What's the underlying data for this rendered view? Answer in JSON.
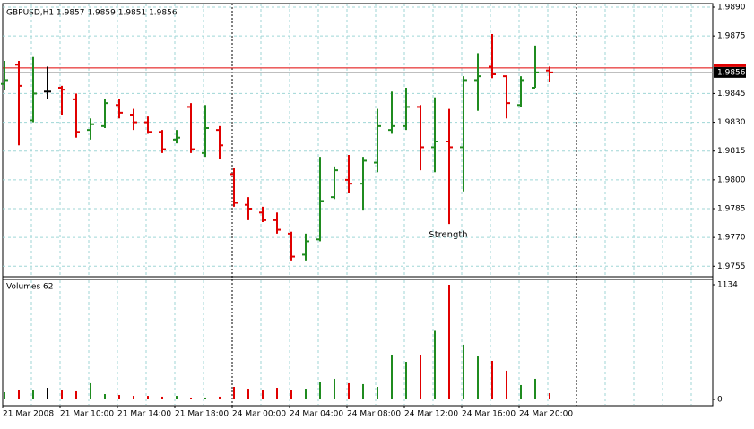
{
  "chart_data": {
    "type": "ohlc",
    "title": "GBPUSD,H1  1.9857 1.9859 1.9851 1.9856",
    "annotation": "Strength",
    "categories": [
      "21 Mar 2008",
      null,
      null,
      null,
      "21 Mar 10:00",
      null,
      null,
      null,
      "21 Mar 14:00",
      null,
      null,
      null,
      "21 Mar 18:00",
      null,
      null,
      null,
      "24 Mar 00:00",
      null,
      null,
      null,
      "24 Mar 04:00",
      null,
      null,
      null,
      "24 Mar 08:00",
      null,
      null,
      null,
      "24 Mar 12:00",
      null,
      null,
      null,
      "24 Mar 16:00",
      null,
      null,
      null,
      "24 Mar 20:00",
      null,
      null
    ],
    "open": [
      1.985,
      1.986,
      1.9831,
      1.9846,
      1.9848,
      1.9842,
      1.9826,
      1.9828,
      1.9839,
      1.9834,
      1.983,
      1.9825,
      1.9821,
      1.9838,
      1.9814,
      1.9826,
      1.9803,
      1.9787,
      1.9783,
      1.9779,
      1.9772,
      1.9761,
      1.9769,
      1.9791,
      1.98,
      1.9798,
      1.9809,
      1.9826,
      1.9828,
      1.9838,
      1.9817,
      1.982,
      1.9817,
      1.9852,
      1.9859,
      1.9854,
      1.9839,
      1.9848,
      1.9857
    ],
    "high": [
      1.9862,
      1.9862,
      1.9864,
      1.9859,
      1.9849,
      1.9845,
      1.9832,
      1.9842,
      1.9842,
      1.9837,
      1.9833,
      1.9826,
      1.9826,
      1.984,
      1.9839,
      1.9828,
      1.9806,
      1.9791,
      1.9786,
      1.9783,
      1.9773,
      1.9772,
      1.9812,
      1.9807,
      1.9813,
      1.9812,
      1.9837,
      1.9846,
      1.9848,
      1.9839,
      1.9843,
      1.9837,
      1.9854,
      1.9866,
      1.9876,
      1.9854,
      1.9854,
      1.987,
      1.9859
    ],
    "low": [
      1.9847,
      1.9818,
      1.983,
      1.9842,
      1.9834,
      1.9822,
      1.9821,
      1.9827,
      1.9832,
      1.9826,
      1.9824,
      1.9814,
      1.9819,
      1.9814,
      1.9812,
      1.9811,
      1.9786,
      1.9779,
      1.9778,
      1.9772,
      1.9758,
      1.9758,
      1.9768,
      1.979,
      1.9793,
      1.9784,
      1.9804,
      1.9824,
      1.9826,
      1.9805,
      1.9804,
      1.9777,
      1.9794,
      1.9836,
      1.9853,
      1.9832,
      1.9838,
      1.9848,
      1.9851
    ],
    "close": [
      1.9852,
      1.9849,
      1.9845,
      1.9846,
      1.9847,
      1.9825,
      1.9829,
      1.984,
      1.9835,
      1.983,
      1.9825,
      1.9816,
      1.9822,
      1.9816,
      1.9827,
      1.9818,
      1.9788,
      1.9785,
      1.9779,
      1.9774,
      1.976,
      1.9768,
      1.9789,
      1.9805,
      1.9798,
      1.981,
      1.9828,
      1.9828,
      1.9838,
      1.9817,
      1.982,
      1.9817,
      1.9852,
      1.9854,
      1.9855,
      1.984,
      1.9852,
      1.9856,
      1.9856
    ],
    "up_color": "#1f8b1f",
    "down_color": "#e00000",
    "flat_color": "#000000",
    "ylim": [
      1.975,
      1.989
    ],
    "yticks": [
      {
        "value": 1.9755,
        "label": "1.9755"
      },
      {
        "value": 1.977,
        "label": "1.9770"
      },
      {
        "value": 1.9785,
        "label": "1.9785"
      },
      {
        "value": 1.98,
        "label": "1.9800"
      },
      {
        "value": 1.9815,
        "label": "1.9815"
      },
      {
        "value": 1.983,
        "label": "1.9830"
      },
      {
        "value": 1.9845,
        "label": "1.9845"
      },
      {
        "value": 1.9875,
        "label": "1.9875"
      },
      {
        "value": 1.989,
        "label": "1.9890"
      }
    ],
    "current_price": {
      "value": 1.9856,
      "label": "1.9856"
    },
    "grid": true,
    "grid_color": "#9fd6d6",
    "volume_title": "Volumes 62",
    "volume": [
      71,
      89,
      97,
      115,
      89,
      80,
      160,
      53,
      44,
      35,
      35,
      27,
      35,
      18,
      18,
      27,
      124,
      106,
      97,
      115,
      89,
      106,
      177,
      204,
      160,
      151,
      124,
      443,
      372,
      443,
      678,
      1134,
      541,
      425,
      381,
      284,
      142,
      204,
      62
    ],
    "volume_ylim": [
      0,
      1134
    ],
    "volume_yticks": [
      0,
      1134
    ]
  }
}
